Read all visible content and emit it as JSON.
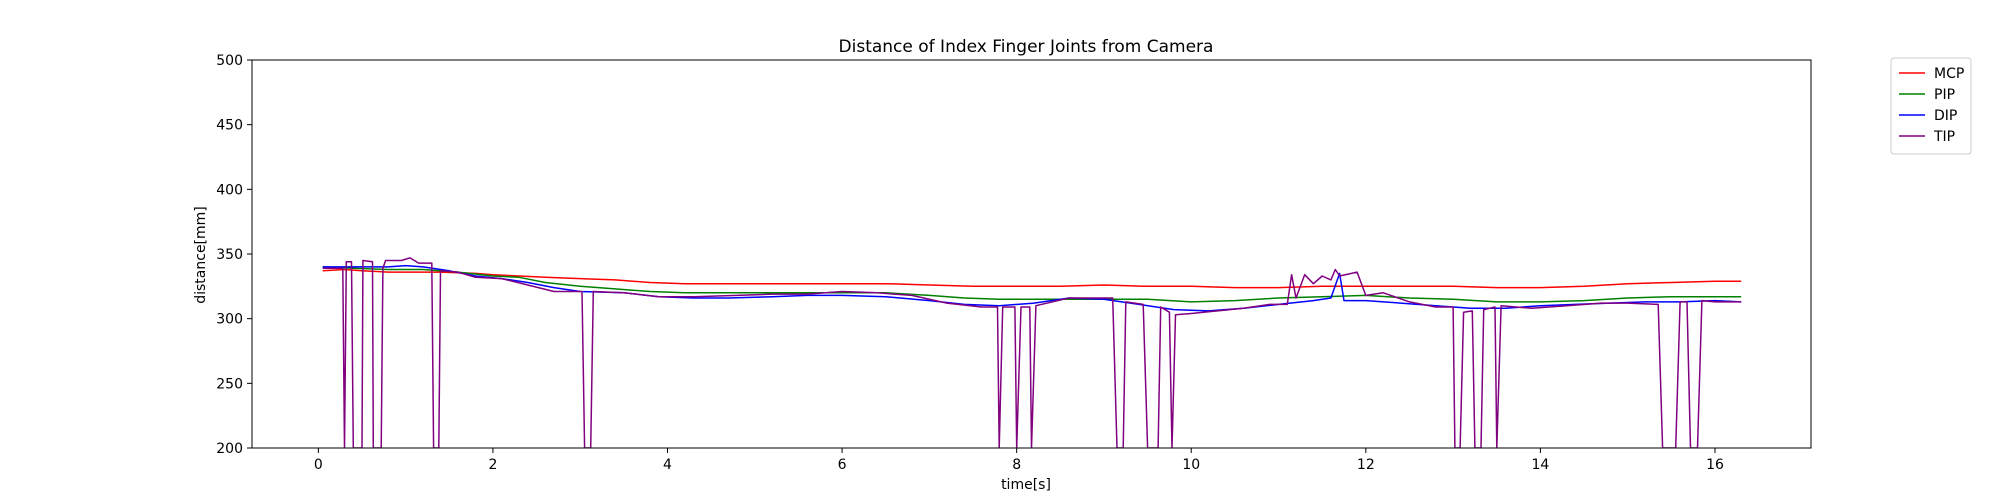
{
  "chart_data": {
    "type": "line",
    "title": "Distance of Index Finger Joints from Camera",
    "xlabel": "time[s]",
    "ylabel": "distance[mm]",
    "xlim": [
      -0.76,
      17.1
    ],
    "ylim": [
      200,
      500
    ],
    "xticks": [
      0,
      2,
      4,
      6,
      8,
      10,
      12,
      14,
      16
    ],
    "yticks": [
      200,
      250,
      300,
      350,
      400,
      450,
      500
    ],
    "grid": false,
    "legend_position": "outside-top-right",
    "series": [
      {
        "name": "MCP",
        "color": "#ff0000",
        "points": [
          [
            0.05,
            337
          ],
          [
            0.3,
            338
          ],
          [
            0.5,
            337
          ],
          [
            0.8,
            336
          ],
          [
            1.0,
            336
          ],
          [
            1.4,
            336
          ],
          [
            1.8,
            335
          ],
          [
            2.0,
            334
          ],
          [
            2.3,
            333
          ],
          [
            2.6,
            332
          ],
          [
            3.0,
            331
          ],
          [
            3.4,
            330
          ],
          [
            3.8,
            328
          ],
          [
            4.2,
            327
          ],
          [
            4.6,
            327
          ],
          [
            5.0,
            327
          ],
          [
            5.5,
            327
          ],
          [
            6.0,
            327
          ],
          [
            6.5,
            327
          ],
          [
            7.0,
            326
          ],
          [
            7.5,
            325
          ],
          [
            8.0,
            325
          ],
          [
            8.5,
            325
          ],
          [
            9.0,
            326
          ],
          [
            9.5,
            325
          ],
          [
            10.0,
            325
          ],
          [
            10.5,
            324
          ],
          [
            11.0,
            324
          ],
          [
            11.5,
            325
          ],
          [
            12.0,
            325
          ],
          [
            12.5,
            325
          ],
          [
            13.0,
            325
          ],
          [
            13.5,
            324
          ],
          [
            14.0,
            324
          ],
          [
            14.5,
            325
          ],
          [
            15.0,
            327
          ],
          [
            15.5,
            328
          ],
          [
            16.0,
            329
          ],
          [
            16.3,
            329
          ]
        ]
      },
      {
        "name": "PIP",
        "color": "#008000",
        "points": [
          [
            0.05,
            340
          ],
          [
            0.4,
            339
          ],
          [
            0.8,
            338
          ],
          [
            1.2,
            338
          ],
          [
            1.6,
            336
          ],
          [
            2.0,
            333
          ],
          [
            2.3,
            332
          ],
          [
            2.6,
            328
          ],
          [
            3.0,
            325
          ],
          [
            3.4,
            323
          ],
          [
            3.8,
            321
          ],
          [
            4.2,
            320
          ],
          [
            4.6,
            320
          ],
          [
            5.0,
            320
          ],
          [
            5.5,
            320
          ],
          [
            6.0,
            320
          ],
          [
            6.5,
            320
          ],
          [
            7.0,
            318
          ],
          [
            7.4,
            316
          ],
          [
            7.8,
            315
          ],
          [
            8.2,
            315
          ],
          [
            8.6,
            315
          ],
          [
            9.0,
            315
          ],
          [
            9.5,
            315
          ],
          [
            10.0,
            313
          ],
          [
            10.5,
            314
          ],
          [
            11.0,
            316
          ],
          [
            11.5,
            317
          ],
          [
            12.0,
            318
          ],
          [
            12.5,
            316
          ],
          [
            13.0,
            315
          ],
          [
            13.5,
            313
          ],
          [
            14.0,
            313
          ],
          [
            14.5,
            314
          ],
          [
            15.0,
            316
          ],
          [
            15.5,
            317
          ],
          [
            16.0,
            317
          ],
          [
            16.3,
            317
          ]
        ]
      },
      {
        "name": "DIP",
        "color": "#0000ff",
        "points": [
          [
            0.05,
            340
          ],
          [
            0.4,
            340
          ],
          [
            0.8,
            340
          ],
          [
            1.0,
            341
          ],
          [
            1.2,
            340
          ],
          [
            1.5,
            337
          ],
          [
            1.8,
            333
          ],
          [
            2.1,
            331
          ],
          [
            2.4,
            328
          ],
          [
            2.7,
            324
          ],
          [
            3.0,
            321
          ],
          [
            3.5,
            320
          ],
          [
            3.9,
            317
          ],
          [
            4.3,
            316
          ],
          [
            4.7,
            316
          ],
          [
            5.2,
            317
          ],
          [
            5.6,
            318
          ],
          [
            6.0,
            318
          ],
          [
            6.5,
            317
          ],
          [
            7.0,
            314
          ],
          [
            7.4,
            311
          ],
          [
            7.8,
            310
          ],
          [
            8.2,
            312
          ],
          [
            8.6,
            316
          ],
          [
            9.0,
            315
          ],
          [
            9.4,
            311
          ],
          [
            9.8,
            307
          ],
          [
            10.2,
            306
          ],
          [
            10.6,
            308
          ],
          [
            11.0,
            311
          ],
          [
            11.4,
            314
          ],
          [
            11.6,
            316
          ],
          [
            11.7,
            335
          ],
          [
            11.75,
            314
          ],
          [
            12.0,
            314
          ],
          [
            12.4,
            312
          ],
          [
            12.8,
            310
          ],
          [
            13.2,
            308
          ],
          [
            13.6,
            308
          ],
          [
            14.0,
            310
          ],
          [
            14.4,
            311
          ],
          [
            14.8,
            312
          ],
          [
            15.2,
            313
          ],
          [
            15.6,
            313
          ],
          [
            16.0,
            314
          ],
          [
            16.3,
            313
          ]
        ]
      },
      {
        "name": "TIP",
        "color": "#800080",
        "points": [
          [
            0.05,
            339
          ],
          [
            0.28,
            339
          ],
          [
            0.3,
            200
          ],
          [
            0.32,
            344
          ],
          [
            0.38,
            344
          ],
          [
            0.4,
            200
          ],
          [
            0.5,
            200
          ],
          [
            0.51,
            345
          ],
          [
            0.62,
            344
          ],
          [
            0.63,
            200
          ],
          [
            0.72,
            200
          ],
          [
            0.74,
            339
          ],
          [
            0.77,
            345
          ],
          [
            0.95,
            345
          ],
          [
            1.05,
            347
          ],
          [
            1.15,
            343
          ],
          [
            1.3,
            343
          ],
          [
            1.32,
            200
          ],
          [
            1.38,
            200
          ],
          [
            1.4,
            337
          ],
          [
            1.6,
            336
          ],
          [
            1.8,
            332
          ],
          [
            2.1,
            331
          ],
          [
            2.4,
            326
          ],
          [
            2.7,
            321
          ],
          [
            3.02,
            321
          ],
          [
            3.05,
            200
          ],
          [
            3.12,
            200
          ],
          [
            3.15,
            321
          ],
          [
            3.5,
            320
          ],
          [
            3.9,
            317
          ],
          [
            4.3,
            317
          ],
          [
            4.8,
            318
          ],
          [
            5.2,
            319
          ],
          [
            5.6,
            319
          ],
          [
            6.0,
            321
          ],
          [
            6.4,
            320
          ],
          [
            6.8,
            318
          ],
          [
            7.2,
            312
          ],
          [
            7.6,
            309
          ],
          [
            7.78,
            309
          ],
          [
            7.8,
            200
          ],
          [
            7.84,
            309
          ],
          [
            7.98,
            309
          ],
          [
            8.0,
            200
          ],
          [
            8.05,
            309
          ],
          [
            8.15,
            309
          ],
          [
            8.17,
            200
          ],
          [
            8.22,
            310
          ],
          [
            8.6,
            316
          ],
          [
            9.0,
            316
          ],
          [
            9.1,
            316
          ],
          [
            9.15,
            200
          ],
          [
            9.22,
            200
          ],
          [
            9.25,
            313
          ],
          [
            9.45,
            311
          ],
          [
            9.5,
            200
          ],
          [
            9.62,
            200
          ],
          [
            9.65,
            309
          ],
          [
            9.75,
            305
          ],
          [
            9.78,
            200
          ],
          [
            9.82,
            303
          ],
          [
            10.0,
            304
          ],
          [
            10.3,
            306
          ],
          [
            10.6,
            308
          ],
          [
            10.9,
            311
          ],
          [
            11.1,
            311
          ],
          [
            11.15,
            334
          ],
          [
            11.2,
            316
          ],
          [
            11.3,
            334
          ],
          [
            11.4,
            327
          ],
          [
            11.5,
            333
          ],
          [
            11.6,
            330
          ],
          [
            11.65,
            338
          ],
          [
            11.7,
            333
          ],
          [
            11.9,
            336
          ],
          [
            12.0,
            318
          ],
          [
            12.2,
            320
          ],
          [
            12.5,
            313
          ],
          [
            12.8,
            309
          ],
          [
            13.0,
            309
          ],
          [
            13.02,
            200
          ],
          [
            13.08,
            200
          ],
          [
            13.12,
            305
          ],
          [
            13.22,
            306
          ],
          [
            13.25,
            200
          ],
          [
            13.32,
            200
          ],
          [
            13.35,
            307
          ],
          [
            13.48,
            309
          ],
          [
            13.5,
            200
          ],
          [
            13.55,
            310
          ],
          [
            13.9,
            308
          ],
          [
            14.3,
            310
          ],
          [
            14.7,
            312
          ],
          [
            15.0,
            312
          ],
          [
            15.35,
            311
          ],
          [
            15.4,
            200
          ],
          [
            15.55,
            200
          ],
          [
            15.6,
            313
          ],
          [
            15.68,
            313
          ],
          [
            15.72,
            200
          ],
          [
            15.8,
            200
          ],
          [
            15.85,
            314
          ],
          [
            16.0,
            313
          ],
          [
            16.3,
            313
          ]
        ]
      }
    ]
  }
}
